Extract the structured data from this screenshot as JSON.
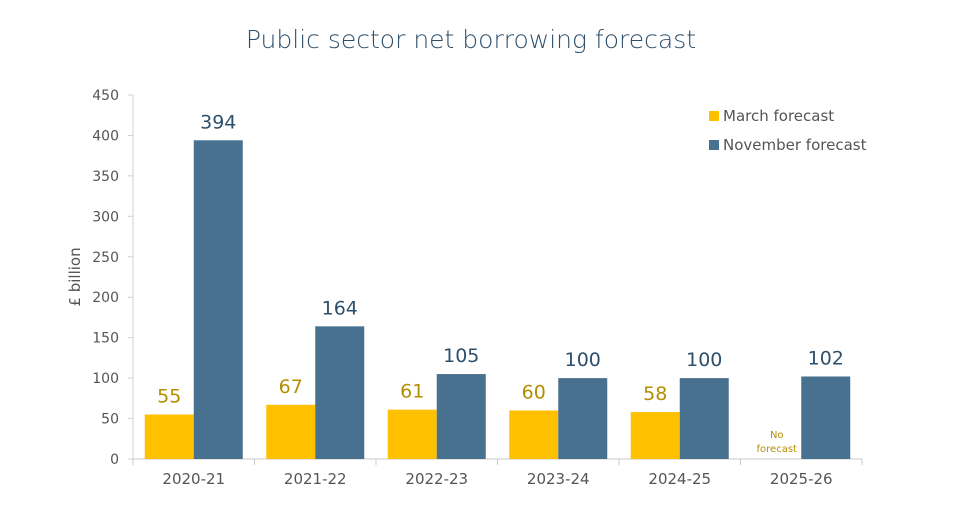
{
  "chart_data": {
    "type": "bar",
    "title": "Public sector net borrowing forecast",
    "xlabel": "",
    "ylabel": "£ billion",
    "ylim": [
      0,
      450
    ],
    "yticks": [
      0,
      50,
      100,
      150,
      200,
      250,
      300,
      350,
      400,
      450
    ],
    "grid": false,
    "legend_position": "top-right",
    "categories": [
      "2020-21",
      "2021-22",
      "2022-23",
      "2023-24",
      "2024-25",
      "2025-26"
    ],
    "series": [
      {
        "name": "March forecast",
        "color": "#ffc000",
        "label_color": "#b58d00",
        "values": [
          55,
          67,
          61,
          60,
          58,
          null
        ]
      },
      {
        "name": "November forecast",
        "color": "#48708f",
        "label_color": "#2e4f6b",
        "values": [
          394,
          164,
          105,
          100,
          100,
          102
        ]
      }
    ],
    "annotations": [
      {
        "category": "2025-26",
        "series": "March forecast",
        "text_lines": [
          "No",
          "forecast"
        ]
      }
    ]
  }
}
